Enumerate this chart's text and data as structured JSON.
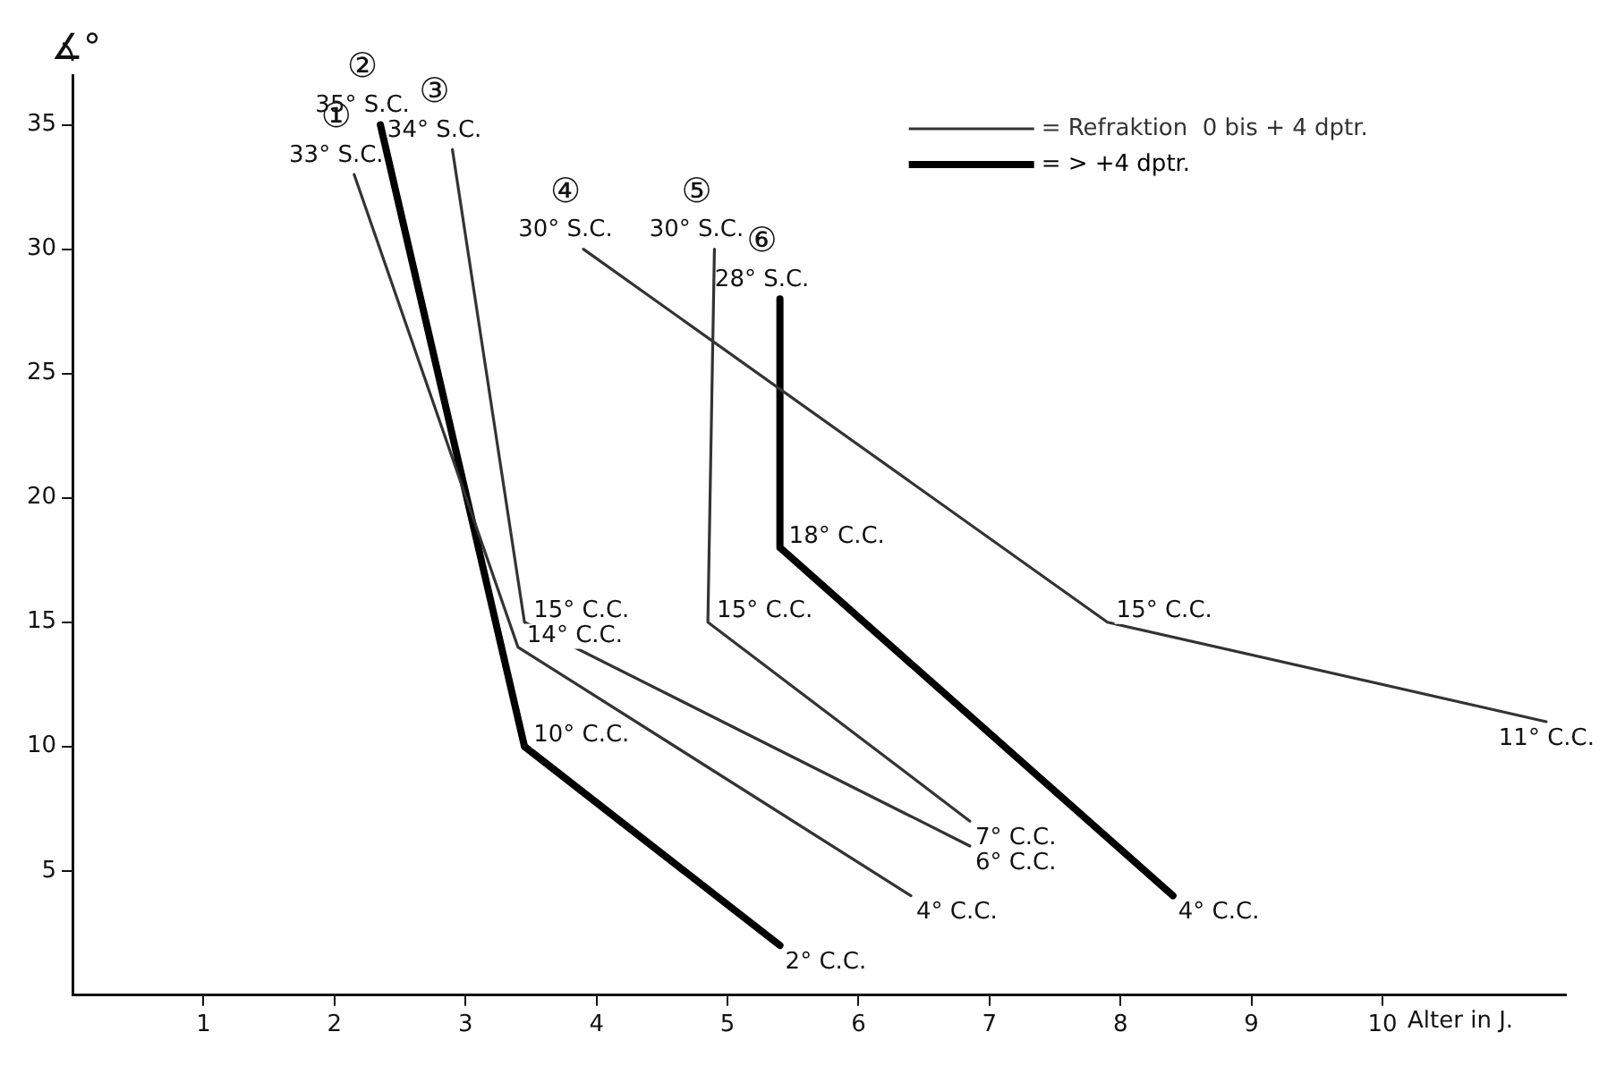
{
  "chart_data": {
    "type": "line",
    "xlabel": "Alter in J.",
    "ylabel": "∡°",
    "xlim": [
      0,
      11.4
    ],
    "ylim": [
      0,
      37
    ],
    "xticks": [
      1,
      2,
      3,
      4,
      5,
      6,
      7,
      8,
      9,
      10
    ],
    "yticks": [
      5,
      10,
      15,
      20,
      25,
      30,
      35
    ],
    "grid": false,
    "legend": "top right",
    "marker": "none",
    "line_style": "solid",
    "series": [
      {
        "name": "= Refraktion  0 bis + 4 dptr.",
        "color": "#333333",
        "x": [
          2.15,
          3.4,
          6.4
        ],
        "values": [
          33,
          14,
          4
        ]
      },
      {
        "name": "= > +4 dptr.",
        "color": "#000000",
        "x": [
          2.35,
          3.45,
          5.4
        ],
        "values": [
          35,
          10,
          2
        ]
      },
      {
        "color": "#333333",
        "x": [
          2.9,
          3.45,
          6.85
        ],
        "values": [
          34,
          15,
          6
        ]
      },
      {
        "color": "#333333",
        "x": [
          3.9,
          7.9,
          11.25
        ],
        "values": [
          30,
          15,
          11
        ]
      },
      {
        "color": "#333333",
        "x": [
          4.9,
          4.85,
          6.85
        ],
        "values": [
          30,
          15,
          7
        ]
      },
      {
        "color": "#000000",
        "x": [
          5.4,
          5.4,
          8.4
        ],
        "values": [
          28,
          18,
          4
        ]
      }
    ],
    "annotations": [
      {
        "text": "①\n33° S.C.",
        "x": 2.15,
        "y": 33
      },
      {
        "text": "②\n35° S.C.",
        "x": 2.35,
        "y": 35
      },
      {
        "text": "③\n34° S.C.",
        "x": 2.9,
        "y": 34
      },
      {
        "text": "④\n30° S.C.",
        "x": 3.9,
        "y": 30
      },
      {
        "text": "⑤\n30° S.C.",
        "x": 4.9,
        "y": 30
      },
      {
        "text": "⑥\n28° S.C.",
        "x": 5.4,
        "y": 28
      },
      {
        "text": "14° C.C.",
        "x": 3.4,
        "y": 14
      },
      {
        "text": "15° C.C.",
        "x": 3.45,
        "y": 15
      },
      {
        "text": "10° C.C.",
        "x": 3.45,
        "y": 10
      },
      {
        "text": "15° C.C.",
        "x": 7.9,
        "y": 15
      },
      {
        "text": "15° C.C.",
        "x": 4.85,
        "y": 15
      },
      {
        "text": "18° C.C.",
        "x": 5.4,
        "y": 18
      },
      {
        "text": "4° C.C.",
        "x": 6.4,
        "y": 4
      },
      {
        "text": "6° C.C.",
        "x": 6.85,
        "y": 6
      },
      {
        "text": "7° C.C.",
        "x": 6.85,
        "y": 7
      },
      {
        "text": "11° C.C.",
        "x": 11.25,
        "y": 11
      },
      {
        "text": "2° C.C.",
        "x": 5.4,
        "y": 2
      },
      {
        "text": "4° C.C.",
        "x": 8.4,
        "y": 4
      }
    ]
  }
}
